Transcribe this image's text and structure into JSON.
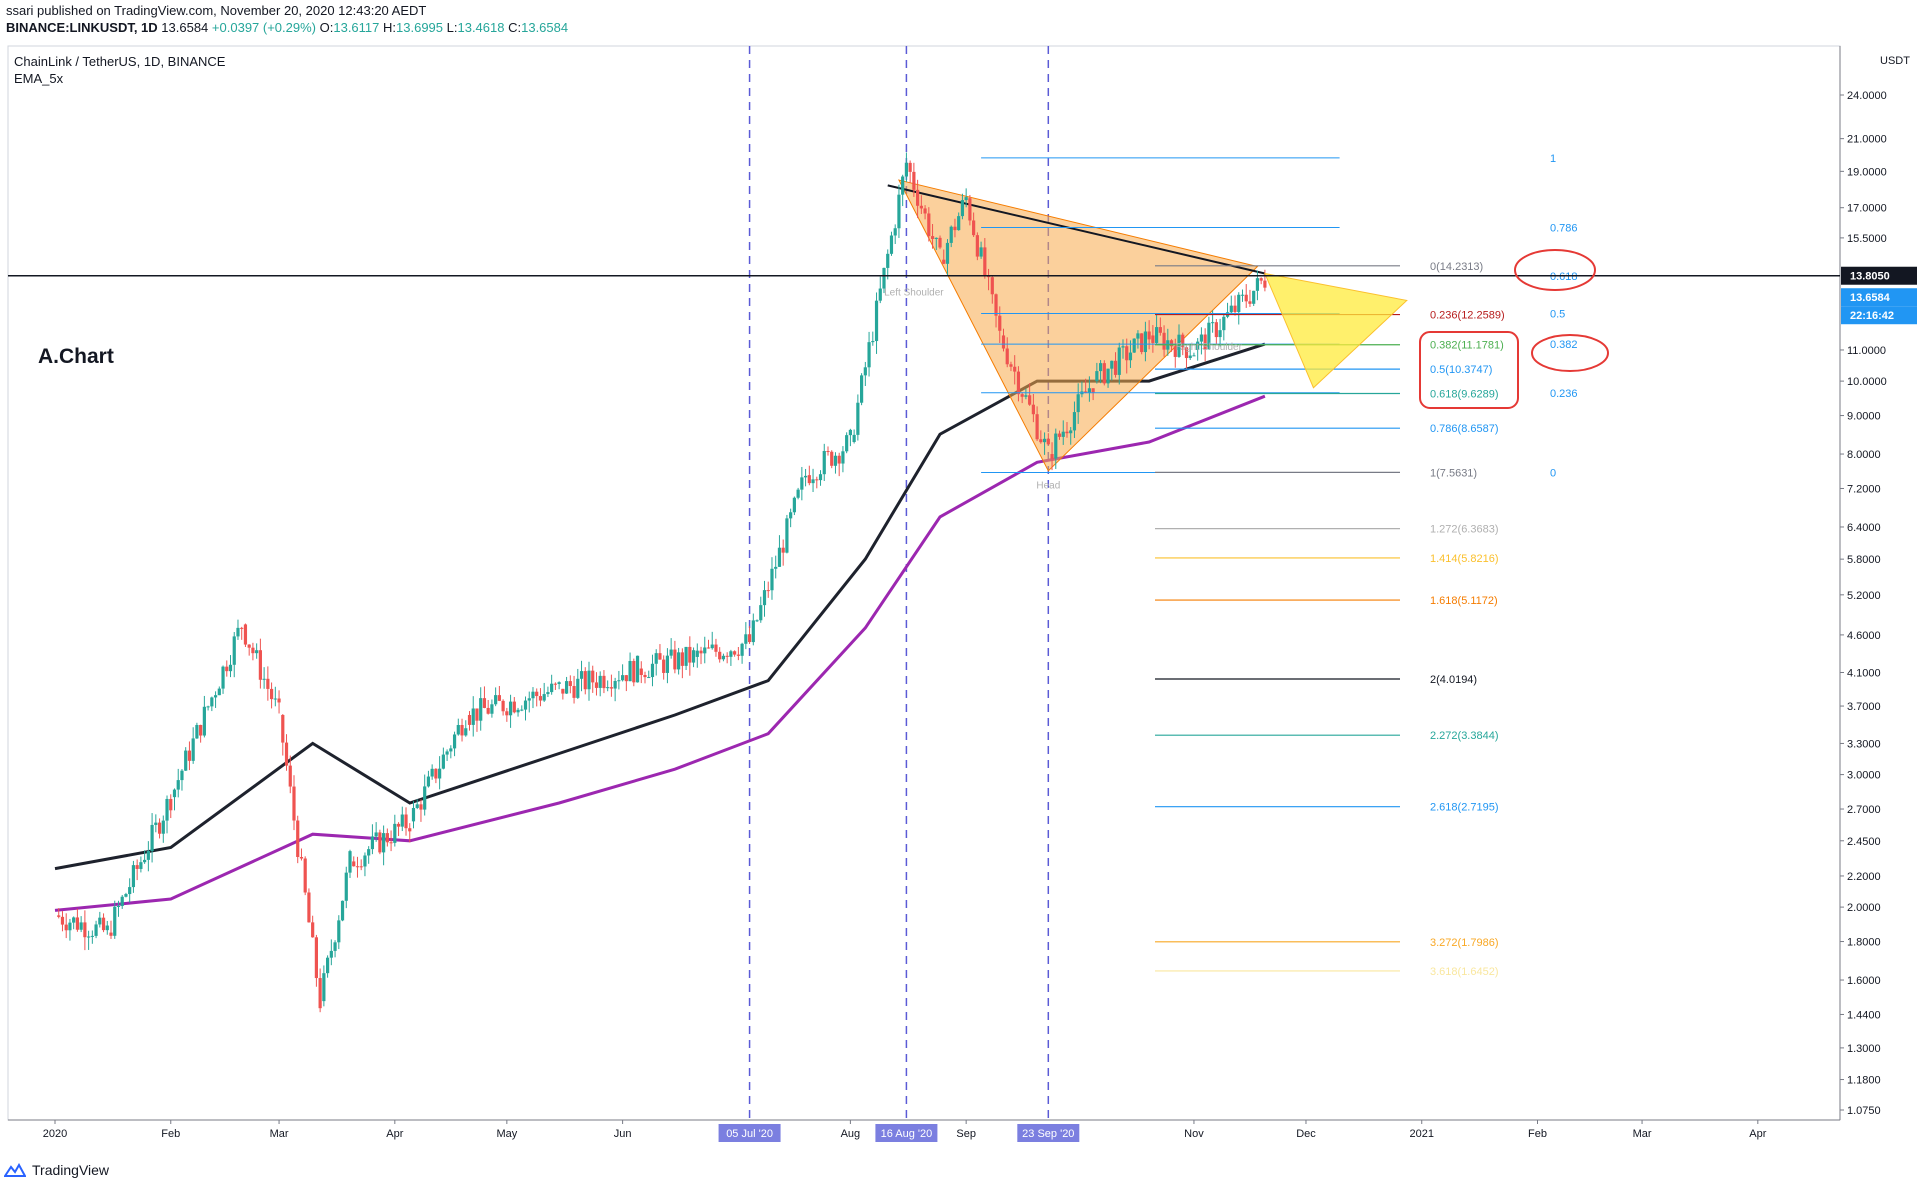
{
  "header": {
    "publisher": "ssari published on TradingView.com, November 20, 2020 12:43:20 AEDT",
    "symbol": "BINANCE:LINKUSDT, 1D",
    "price": "13.6584",
    "change": "+0.0397 (+0.29%)",
    "open_label": "O:",
    "open": "13.6117",
    "high_label": "H:",
    "high": "13.6995",
    "low_label": "L:",
    "low": "13.4618",
    "close_label": "C:",
    "close": "13.6584"
  },
  "legend": {
    "pair": "ChainLink / TetherUS, 1D, BINANCE",
    "indicator": "EMA_5x"
  },
  "annotation": "A.Chart",
  "footer": {
    "brand": "TradingView"
  },
  "colors": {
    "up": "#26a69a",
    "down": "#ef5350",
    "ema_black": "#1e222d",
    "ema_purple": "#9c27b0",
    "ema_blue_fill": "#c5e1f5",
    "ema_orange_fill": "#fcd8b0",
    "pattern_fill": "#f7a94a",
    "triangle_fill": "#ffeb3b",
    "vline": "#5b5bd6",
    "price_tag_black": "#131722",
    "price_tag_blue": "#2196f3",
    "circle": "#e53935"
  },
  "chart_data": {
    "type": "candlestick",
    "y_scale": "log",
    "y_range": [
      1.0,
      29.0
    ],
    "price_axis_unit": "USDT",
    "y_ticks": [
      "24.0000",
      "21.0000",
      "19.0000",
      "17.0000",
      "15.5000",
      "11.0000",
      "10.0000",
      "9.0000",
      "8.0000",
      "7.2000",
      "6.4000",
      "5.8000",
      "5.2000",
      "4.6000",
      "4.1000",
      "3.7000",
      "3.3000",
      "3.0000",
      "2.7000",
      "2.4500",
      "2.2000",
      "2.0000",
      "1.8000",
      "1.6000",
      "1.4400",
      "1.3000",
      "1.1800",
      "1.0750"
    ],
    "x_ticks": [
      "2020",
      "Feb",
      "Mar",
      "Apr",
      "May",
      "Jun",
      "Aug",
      "Sep",
      "Nov",
      "Dec",
      "2021",
      "Feb",
      "Mar",
      "Apr"
    ],
    "date_markers": [
      "05 Jul '20",
      "16 Aug '20",
      "23 Sep '20"
    ],
    "price_tags": [
      "13.8050",
      "13.6584",
      "22:16:42"
    ],
    "last_close": 13.6584,
    "horizontal_line": 13.805,
    "swing_points": [
      {
        "date": "2020-01-01",
        "price": 1.95
      },
      {
        "date": "2020-01-15",
        "price": 1.85
      },
      {
        "date": "2020-02-01",
        "price": 2.8
      },
      {
        "date": "2020-02-20",
        "price": 4.75
      },
      {
        "date": "2020-03-01",
        "price": 3.6
      },
      {
        "date": "2020-03-12",
        "price": 1.5
      },
      {
        "date": "2020-03-20",
        "price": 2.3
      },
      {
        "date": "2020-04-05",
        "price": 2.6
      },
      {
        "date": "2020-04-20",
        "price": 3.6
      },
      {
        "date": "2020-05-15",
        "price": 3.9
      },
      {
        "date": "2020-06-05",
        "price": 4.15
      },
      {
        "date": "2020-06-20",
        "price": 4.3
      },
      {
        "date": "2020-07-05",
        "price": 4.5
      },
      {
        "date": "2020-07-20",
        "price": 7.5
      },
      {
        "date": "2020-08-01",
        "price": 8.3
      },
      {
        "date": "2020-08-16",
        "price": 19.5
      },
      {
        "date": "2020-08-25",
        "price": 14.5
      },
      {
        "date": "2020-09-01",
        "price": 17.5
      },
      {
        "date": "2020-09-10",
        "price": 11.5
      },
      {
        "date": "2020-09-23",
        "price": 8.0
      },
      {
        "date": "2020-10-05",
        "price": 10.0
      },
      {
        "date": "2020-10-20",
        "price": 11.5
      },
      {
        "date": "2020-11-01",
        "price": 11.0
      },
      {
        "date": "2020-11-20",
        "price": 13.66
      }
    ],
    "ema_series": [
      {
        "color": "#1e222d",
        "points": [
          {
            "date": "2020-01-01",
            "price": 2.25
          },
          {
            "date": "2020-02-01",
            "price": 2.4
          },
          {
            "date": "2020-03-10",
            "price": 3.3
          },
          {
            "date": "2020-04-05",
            "price": 2.75
          },
          {
            "date": "2020-05-15",
            "price": 3.2
          },
          {
            "date": "2020-06-15",
            "price": 3.6
          },
          {
            "date": "2020-07-10",
            "price": 4.0
          },
          {
            "date": "2020-08-05",
            "price": 5.8
          },
          {
            "date": "2020-08-25",
            "price": 8.5
          },
          {
            "date": "2020-09-20",
            "price": 10.0
          },
          {
            "date": "2020-10-20",
            "price": 10.0
          },
          {
            "date": "2020-11-20",
            "price": 11.2
          }
        ]
      },
      {
        "color": "#9c27b0",
        "points": [
          {
            "date": "2020-01-01",
            "price": 1.98
          },
          {
            "date": "2020-02-01",
            "price": 2.05
          },
          {
            "date": "2020-03-10",
            "price": 2.5
          },
          {
            "date": "2020-04-05",
            "price": 2.45
          },
          {
            "date": "2020-05-15",
            "price": 2.75
          },
          {
            "date": "2020-06-15",
            "price": 3.05
          },
          {
            "date": "2020-07-10",
            "price": 3.4
          },
          {
            "date": "2020-08-05",
            "price": 4.7
          },
          {
            "date": "2020-08-25",
            "price": 6.6
          },
          {
            "date": "2020-09-20",
            "price": 7.8
          },
          {
            "date": "2020-10-20",
            "price": 8.3
          },
          {
            "date": "2020-11-20",
            "price": 9.55
          }
        ]
      }
    ],
    "fib_retracement_left": [
      {
        "label": "1",
        "price": 19.8
      },
      {
        "label": "0.786",
        "price": 16.0
      },
      {
        "label": "0.618",
        "price": 13.8
      },
      {
        "label": "0.5",
        "price": 12.3
      },
      {
        "label": "0.382",
        "price": 11.2
      },
      {
        "label": "0.236",
        "price": 9.65
      },
      {
        "label": "0",
        "price": 7.56
      }
    ],
    "fib_extension_right": [
      {
        "label": "0(14.2313)",
        "price": 14.2313
      },
      {
        "label": "0.236(12.2589)",
        "price": 12.2589
      },
      {
        "label": "0.382(11.1781)",
        "price": 11.1781
      },
      {
        "label": "0.5(10.3747)",
        "price": 10.3747
      },
      {
        "label": "0.618(9.6289)",
        "price": 9.6289
      },
      {
        "label": "0.786(8.6587)",
        "price": 8.6587
      },
      {
        "label": "1(7.5631)",
        "price": 7.5631
      },
      {
        "label": "1.272(6.3683)",
        "price": 6.3683
      },
      {
        "label": "1.414(5.8216)",
        "price": 5.8216
      },
      {
        "label": "1.618(5.1172)",
        "price": 5.1172
      },
      {
        "label": "2(4.0194)",
        "price": 4.0194
      },
      {
        "label": "2.272(3.3844)",
        "price": 3.3844
      },
      {
        "label": "2.618(2.7195)",
        "price": 2.7195
      },
      {
        "label": "3.272(1.7986)",
        "price": 1.7986
      },
      {
        "label": "3.618(1.6452)",
        "price": 1.6452
      }
    ],
    "pattern_labels": [
      "Left Shoulder",
      "Head",
      "Right Shoulder"
    ]
  }
}
